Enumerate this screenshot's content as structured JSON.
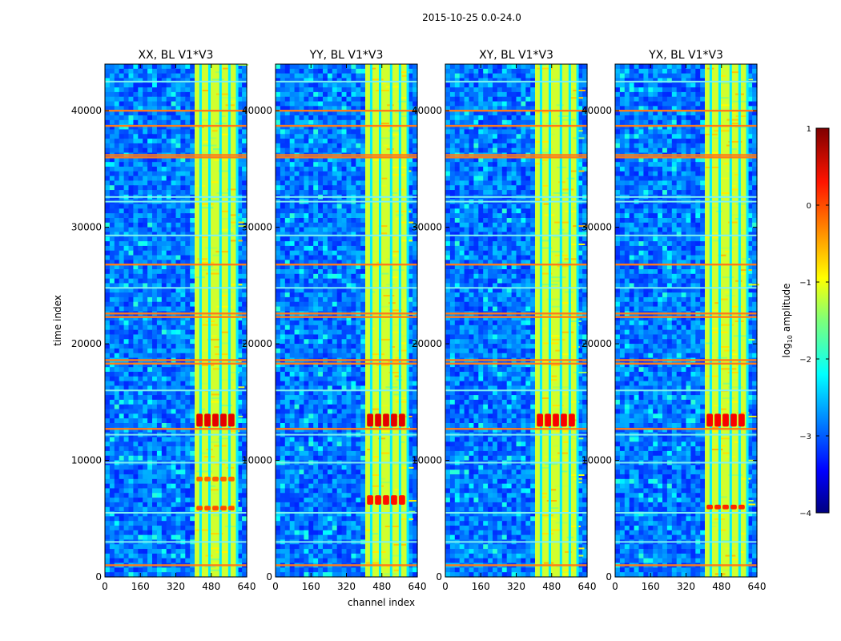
{
  "chart_data": {
    "type": "heatmap",
    "title": "2015-10-25 0.0-24.0",
    "xlabel": "channel index",
    "ylabel": "time index",
    "xlim": [
      0,
      640
    ],
    "ylim": [
      0,
      44000
    ],
    "xticks": [
      0,
      160,
      320,
      480,
      640
    ],
    "yticks": [
      0,
      10000,
      20000,
      30000,
      40000
    ],
    "xtick_labels": [
      "0",
      "160",
      "320",
      "480",
      "640"
    ],
    "ytick_labels": [
      "0",
      "10000",
      "20000",
      "30000",
      "40000"
    ],
    "panels": [
      {
        "title": "XX, BL V1*V3",
        "active_band": [
          405,
          600
        ],
        "bright_columns": [
          430,
          470,
          520,
          560,
          595
        ],
        "hot_blocks": [
          {
            "ch_range": [
              410,
              590
            ],
            "time_range": [
              12900,
              14000
            ],
            "log_amp": 0.5
          },
          {
            "ch_range": [
              410,
              590
            ],
            "time_range": [
              8200,
              8600
            ],
            "log_amp": -0.1
          },
          {
            "ch_range": [
              410,
              590
            ],
            "time_range": [
              5700,
              6100
            ],
            "log_amp": 0.0
          }
        ]
      },
      {
        "title": "YY, BL V1*V3",
        "active_band": [
          405,
          600
        ],
        "bright_columns": [
          430,
          470,
          520,
          560,
          595
        ],
        "hot_blocks": [
          {
            "ch_range": [
              410,
              590
            ],
            "time_range": [
              12900,
              14000
            ],
            "log_amp": 0.5
          },
          {
            "ch_range": [
              410,
              590
            ],
            "time_range": [
              6200,
              7000
            ],
            "log_amp": 0.3
          }
        ]
      },
      {
        "title": "XY, BL V1*V3",
        "active_band": [
          405,
          600
        ],
        "bright_columns": [
          430,
          470,
          520,
          560,
          595
        ],
        "hot_blocks": [
          {
            "ch_range": [
              410,
              590
            ],
            "time_range": [
              12900,
              14000
            ],
            "log_amp": 0.4
          }
        ]
      },
      {
        "title": "YX, BL V1*V3",
        "active_band": [
          405,
          600
        ],
        "bright_columns": [
          430,
          470,
          520,
          560,
          595
        ],
        "hot_blocks": [
          {
            "ch_range": [
              410,
              590
            ],
            "time_range": [
              12900,
              14000
            ],
            "log_amp": 0.4
          },
          {
            "ch_range": [
              410,
              590
            ],
            "time_range": [
              5800,
              6200
            ],
            "log_amp": 0.2
          }
        ]
      }
    ],
    "rfi_rows_orange": [
      1000,
      12700,
      18300,
      18600,
      22300,
      22600,
      26800,
      36000,
      36200,
      38700,
      40000
    ],
    "rfi_rows_cyan": [
      3000,
      5500,
      9800,
      12200,
      16000,
      24800,
      29300,
      32200,
      32600,
      42500
    ],
    "colorbar": {
      "label": "log10 amplitude",
      "label_main": "log",
      "label_sub": "10",
      "label_rest": " amplitude",
      "range": [
        -4,
        1
      ],
      "ticks": [
        1,
        0,
        -1,
        -2,
        -3,
        -4
      ],
      "tick_labels": [
        "1",
        "0",
        "−1",
        "−2",
        "−3",
        "−4"
      ],
      "colormap": "jet"
    }
  }
}
